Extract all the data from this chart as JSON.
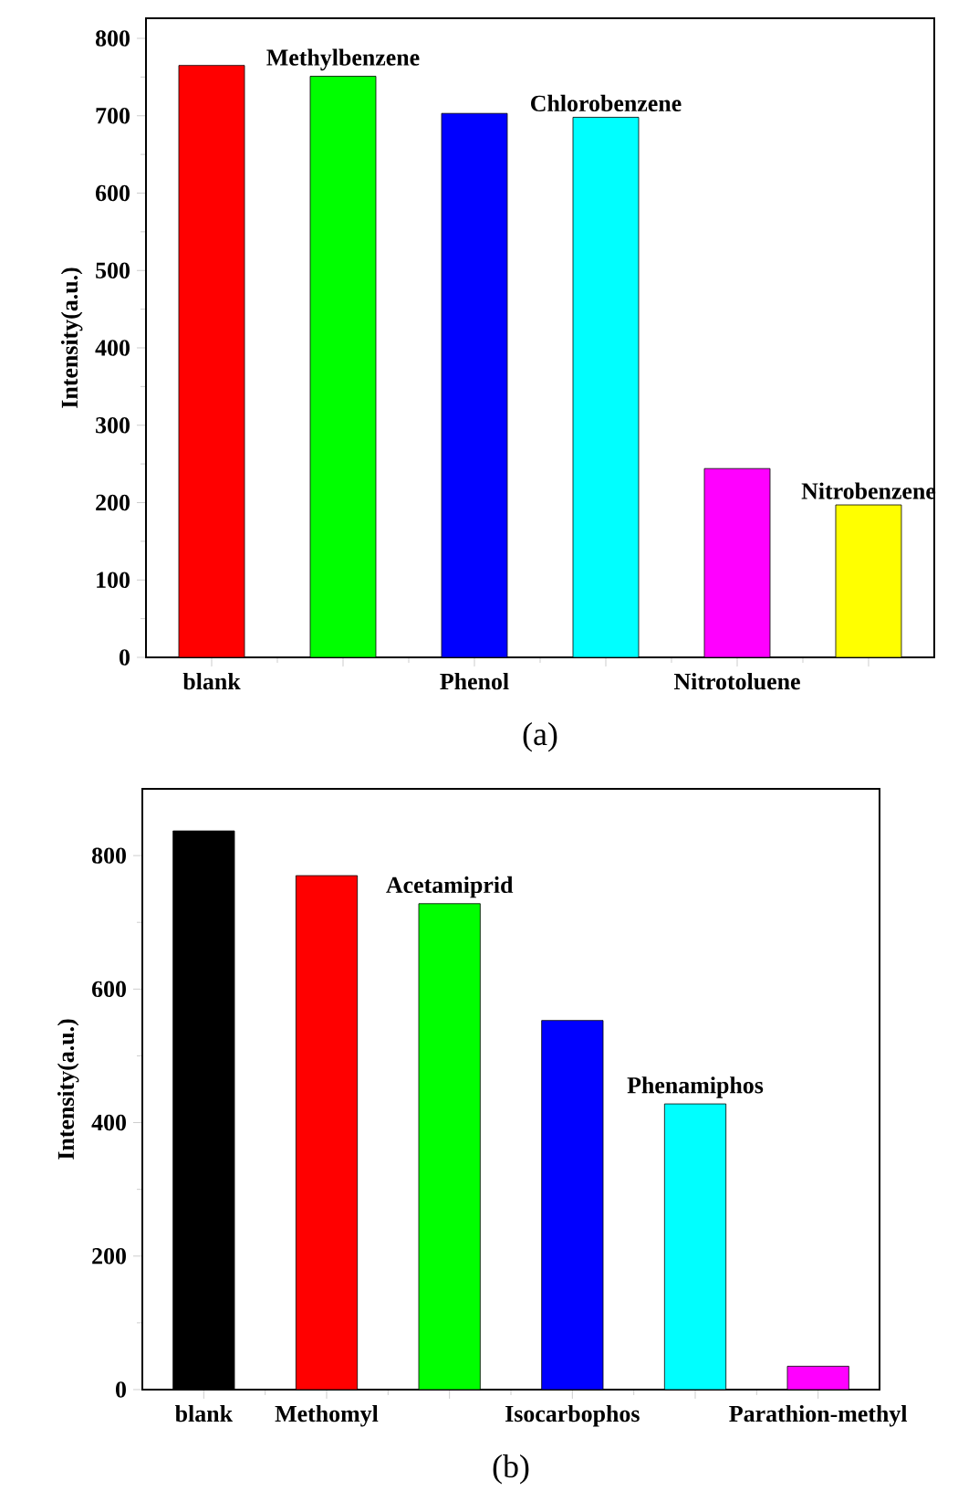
{
  "chart_data": [
    {
      "type": "bar",
      "title": "(a)",
      "ylabel": "Intensity(a.u.)",
      "categories": [
        "blank",
        null,
        "Phenol",
        null,
        "Nitrotoluene",
        null
      ],
      "annotations": [
        "Methylbenzene",
        "Chlorobenzene",
        "Nitrobenzene"
      ],
      "values": [
        765,
        751,
        703,
        698,
        244,
        197
      ],
      "colors": [
        "#ff0000",
        "#00ff00",
        "#0000ff",
        "#00ffff",
        "#ff00ff",
        "#ffff00"
      ],
      "ylim": [
        0,
        826
      ],
      "yticks": [
        0,
        100,
        200,
        300,
        400,
        500,
        600,
        700,
        800
      ]
    },
    {
      "type": "bar",
      "title": "(b)",
      "ylabel": "Intensity(a.u.)",
      "categories": [
        "blank",
        "Methomyl",
        null,
        "Isocarbophos",
        null,
        "Parathion-methyl"
      ],
      "annotations": [
        "Acetamiprid",
        "Phenamiphos"
      ],
      "values": [
        837,
        770,
        728,
        553,
        428,
        35
      ],
      "colors": [
        "#000000",
        "#ff0000",
        "#00ff00",
        "#0000ff",
        "#00ffff",
        "#ff00ff"
      ],
      "ylim": [
        0,
        900
      ],
      "yticks": [
        0,
        200,
        400,
        600,
        800
      ]
    }
  ]
}
